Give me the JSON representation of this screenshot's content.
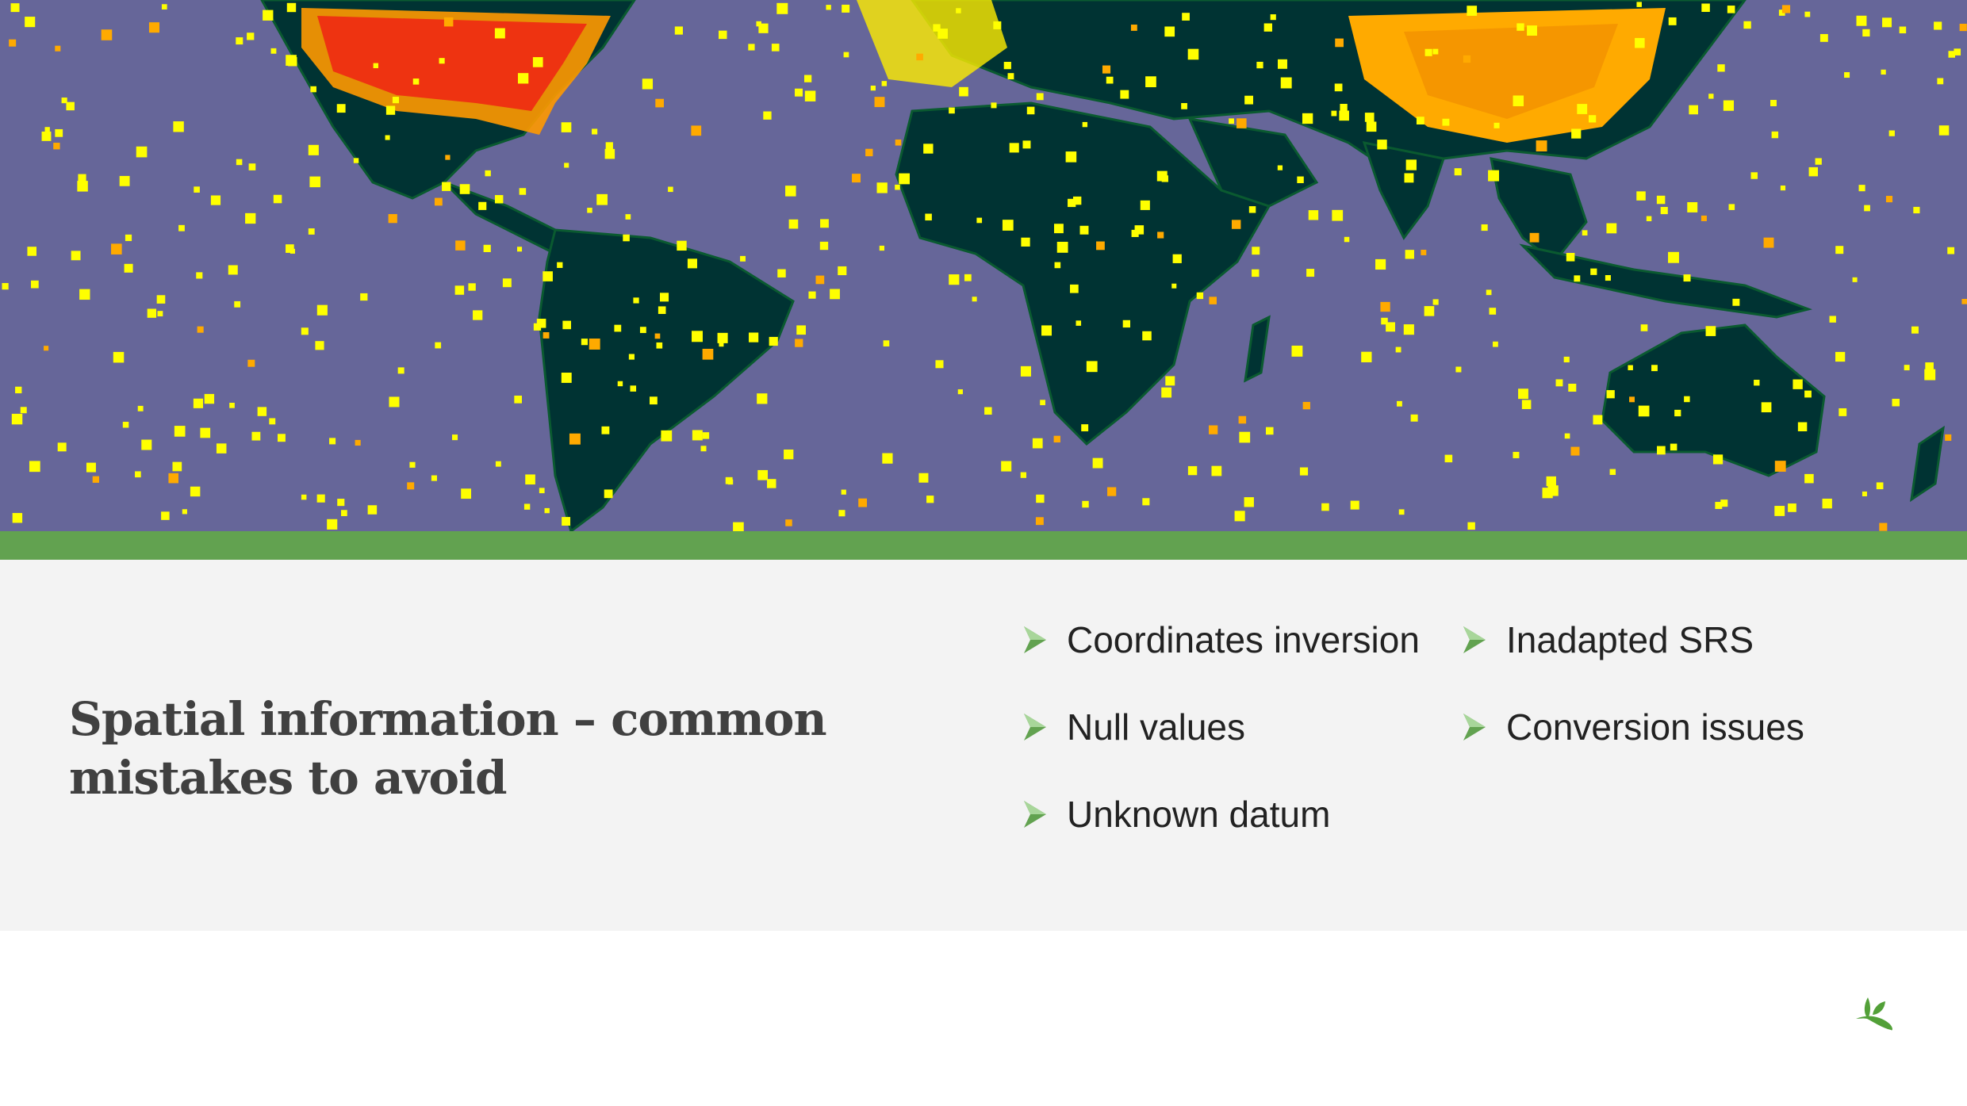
{
  "slide": {
    "title": "Spatial information – common mistakes to avoid",
    "bullets": [
      {
        "text": "Coordinates inversion",
        "icon": "arrowhead-bullet-icon"
      },
      {
        "text": "Inadapted SRS",
        "icon": "arrowhead-bullet-icon"
      },
      {
        "text": "Null values",
        "icon": "arrowhead-bullet-icon"
      },
      {
        "text": "Conversion issues",
        "icon": "arrowhead-bullet-icon"
      },
      {
        "text": "Unknown datum",
        "icon": "arrowhead-bullet-icon"
      }
    ],
    "logo": "leaf-logo-icon"
  },
  "colors": {
    "ocean": "#666699",
    "land": "#003333",
    "accent_green": "#62a250",
    "panel": "#f3f3f3",
    "heat_high": "#ee3311",
    "heat_mid": "#ffaa00",
    "heat_low": "#ffff00"
  }
}
